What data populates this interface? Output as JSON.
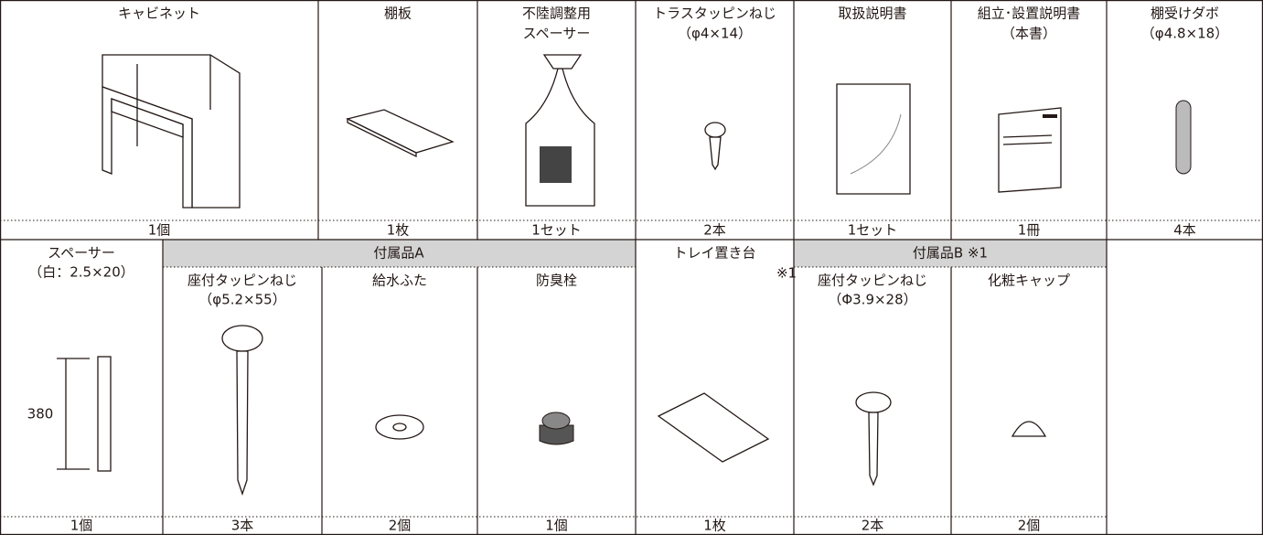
{
  "row1": [
    {
      "name": [
        "キャビネット"
      ],
      "qty": "1個"
    },
    {
      "name": [
        "棚板"
      ],
      "qty": "1枚"
    },
    {
      "name": [
        "不陸調整用",
        "スペーサー"
      ],
      "qty": "1セット"
    },
    {
      "name": [
        "トラスタッピンねじ",
        "（φ4×14）"
      ],
      "qty": "2本"
    },
    {
      "name": [
        "取扱説明書"
      ],
      "qty": "1セット"
    },
    {
      "name": [
        "組立･設置説明書",
        "（本書）"
      ],
      "qty": "1冊"
    },
    {
      "name": [
        "棚受けダボ",
        "（φ4.8×18）"
      ],
      "qty": "4本"
    }
  ],
  "groups": [
    "付属品A",
    "付属品B ※1"
  ],
  "row2": [
    {
      "name": [
        "スペーサー",
        "（白：2.5×20）"
      ],
      "dimension": "380",
      "qty": "1個"
    },
    {
      "name": [
        "座付タッピンねじ",
        "（φ5.2×55）"
      ],
      "qty": "3本"
    },
    {
      "name": [
        "給水ふた"
      ],
      "qty": "2個"
    },
    {
      "name": [
        "防臭栓"
      ],
      "qty": "1個"
    },
    {
      "name": [
        "トレイ置き台"
      ],
      "note": "※1",
      "qty": "1枚"
    },
    {
      "name": [
        "座付タッピンねじ",
        "（Φ3.9×28）"
      ],
      "qty": "2本"
    },
    {
      "name": [
        "化粧キャップ"
      ],
      "qty": "2個"
    }
  ]
}
